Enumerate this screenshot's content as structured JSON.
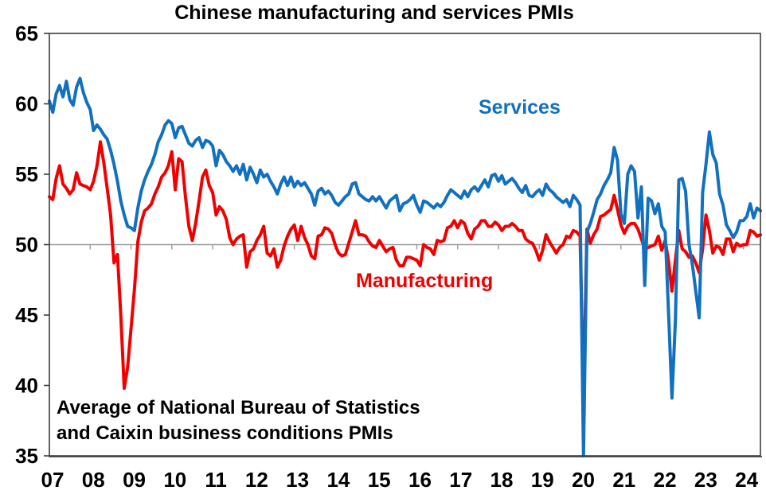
{
  "title": "Chinese manufacturing and services PMIs",
  "annotation": {
    "line1": "Average of National Bureau of Statistics",
    "line2": "and Caixin business conditions PMIs"
  },
  "series_labels": {
    "services": "Services",
    "manufacturing": "Manufacturing"
  },
  "colors": {
    "services": "#1170C0",
    "manufacturing": "#F20000",
    "gridline": "#999999",
    "border": "#3D3D3D",
    "text": "#000000"
  },
  "chart_data": {
    "type": "line",
    "title": "Chinese manufacturing and services PMIs",
    "xlabel": "",
    "ylabel": "",
    "x_start": "2007-01",
    "x_end": "2024-06",
    "x_frequency": "monthly",
    "x_tick_labels": [
      "07",
      "08",
      "09",
      "10",
      "11",
      "12",
      "13",
      "14",
      "15",
      "16",
      "17",
      "18",
      "19",
      "20",
      "21",
      "22",
      "23",
      "24"
    ],
    "y_ticks": [
      35,
      40,
      45,
      50,
      55,
      60,
      65
    ],
    "ylim": [
      35,
      65
    ],
    "gridline_at": 50,
    "grid": "horizontal line at 50 only, with year tick marks",
    "legend_position": "inline text labels on chart",
    "clip_below_axis_min": true,
    "series": [
      {
        "name": "Manufacturing",
        "color": "#F20000",
        "values": [
          53.4,
          53.2,
          54.7,
          55.6,
          54.3,
          54.0,
          53.6,
          53.9,
          55.1,
          54.3,
          54.2,
          54.1,
          53.9,
          54.5,
          55.6,
          57.3,
          55.8,
          54.0,
          52.1,
          48.7,
          49.3,
          45.0,
          39.8,
          41.3,
          44.0,
          46.8,
          50.2,
          51.6,
          52.4,
          52.6,
          52.9,
          53.6,
          54.1,
          54.8,
          55.1,
          55.6,
          56.6,
          53.9,
          56.1,
          55.9,
          53.4,
          51.3,
          50.3,
          51.5,
          53.1,
          54.8,
          55.3,
          54.2,
          53.7,
          52.1,
          52.7,
          52.4,
          51.8,
          50.5,
          50.0,
          50.4,
          50.6,
          50.7,
          48.4,
          49.5,
          49.7,
          50.3,
          50.7,
          51.3,
          49.4,
          49.2,
          49.7,
          48.4,
          48.9,
          49.9,
          50.6,
          51.1,
          51.4,
          50.3,
          51.3,
          50.5,
          50.0,
          49.2,
          49.0,
          50.6,
          50.7,
          51.2,
          51.1,
          50.8,
          50.0,
          49.4,
          49.2,
          49.3,
          50.1,
          50.9,
          51.7,
          50.7,
          50.7,
          50.6,
          50.2,
          49.9,
          49.8,
          50.3,
          49.9,
          49.5,
          49.7,
          49.8,
          48.9,
          48.5,
          48.5,
          49.1,
          49.1,
          49.0,
          48.9,
          48.5,
          50.0,
          49.8,
          49.7,
          49.3,
          50.3,
          50.2,
          50.3,
          51.2,
          51.3,
          51.7,
          51.2,
          51.7,
          51.5,
          50.8,
          50.4,
          51.1,
          51.3,
          51.7,
          51.7,
          51.3,
          51.3,
          51.6,
          51.4,
          51.0,
          51.3,
          51.3,
          51.5,
          51.3,
          51.0,
          51.0,
          50.4,
          50.2,
          50.1,
          49.6,
          48.9,
          49.6,
          50.7,
          50.2,
          49.8,
          49.4,
          49.8,
          50.0,
          50.6,
          50.5,
          51.0,
          50.9,
          50.6,
          39.0,
          51.1,
          50.1,
          50.7,
          51.1,
          52.0,
          52.1,
          52.3,
          52.5,
          53.5,
          52.5,
          51.4,
          50.8,
          51.3,
          51.5,
          51.5,
          51.1,
          50.4,
          49.7,
          49.8,
          49.9,
          50.0,
          50.6,
          49.6,
          50.3,
          48.8,
          46.7,
          48.9,
          51.0,
          49.7,
          49.5,
          49.1,
          49.2,
          48.7,
          48.0,
          49.7,
          52.1,
          51.0,
          49.4,
          49.9,
          49.8,
          49.3,
          50.4,
          50.4,
          49.5,
          50.1,
          49.9,
          50.0,
          50.0,
          51.0,
          50.9,
          50.6,
          50.7
        ]
      },
      {
        "name": "Services",
        "color": "#1170C0",
        "values": [
          60.2,
          59.4,
          60.7,
          61.3,
          60.5,
          61.6,
          60.3,
          59.9,
          61.2,
          61.8,
          60.8,
          60.1,
          59.6,
          58.1,
          58.5,
          58.2,
          57.8,
          57.5,
          56.7,
          55.7,
          54.5,
          53.1,
          52.1,
          51.3,
          51.2,
          51.0,
          52.6,
          53.8,
          54.6,
          55.2,
          55.7,
          56.4,
          57.3,
          57.8,
          58.5,
          58.8,
          58.6,
          57.6,
          58.3,
          58.4,
          57.8,
          57.2,
          57.0,
          57.4,
          57.6,
          56.9,
          57.4,
          57.3,
          57.0,
          55.6,
          56.7,
          56.4,
          55.9,
          55.6,
          55.2,
          55.6,
          55.0,
          55.7,
          54.6,
          55.5,
          55.0,
          54.4,
          55.3,
          54.8,
          55.0,
          54.5,
          54.1,
          53.6,
          54.3,
          54.8,
          54.2,
          54.8,
          54.1,
          54.5,
          54.2,
          54.4,
          54.0,
          53.6,
          52.8,
          53.8,
          54.0,
          53.6,
          53.8,
          53.5,
          53.0,
          52.8,
          53.1,
          53.4,
          53.6,
          54.3,
          54.4,
          53.6,
          53.4,
          53.2,
          53.1,
          53.4,
          53.1,
          53.4,
          53.0,
          52.6,
          53.1,
          53.3,
          53.5,
          52.4,
          52.9,
          53.0,
          53.2,
          53.5,
          52.8,
          52.3,
          53.1,
          53.0,
          52.8,
          52.6,
          52.9,
          52.7,
          53.0,
          53.5,
          53.9,
          53.7,
          53.5,
          53.3,
          53.8,
          53.4,
          53.9,
          54.1,
          53.8,
          54.2,
          54.6,
          54.1,
          54.9,
          55.0,
          54.5,
          54.9,
          54.3,
          54.5,
          54.7,
          54.4,
          54.0,
          53.7,
          54.2,
          53.5,
          53.4,
          53.7,
          53.9,
          53.5,
          54.3,
          53.9,
          53.7,
          53.4,
          53.2,
          53.0,
          53.2,
          52.7,
          53.5,
          53.2,
          52.8,
          28.1,
          50.9,
          51.5,
          52.3,
          53.2,
          53.6,
          54.2,
          54.6,
          55.1,
          56.9,
          56.0,
          52.2,
          51.5,
          55.0,
          55.6,
          55.2,
          51.9,
          54.1,
          47.1,
          53.3,
          53.1,
          52.2,
          52.9,
          51.3,
          50.9,
          45.2,
          39.1,
          44.6,
          54.6,
          54.7,
          53.8,
          50.0,
          48.6,
          46.7,
          44.8,
          53.7,
          55.7,
          58.0,
          56.4,
          55.8,
          53.6,
          52.8,
          51.4,
          51.0,
          50.5,
          50.9,
          51.7,
          51.7,
          52.0,
          52.9,
          51.9,
          52.6,
          52.4
        ]
      }
    ]
  }
}
